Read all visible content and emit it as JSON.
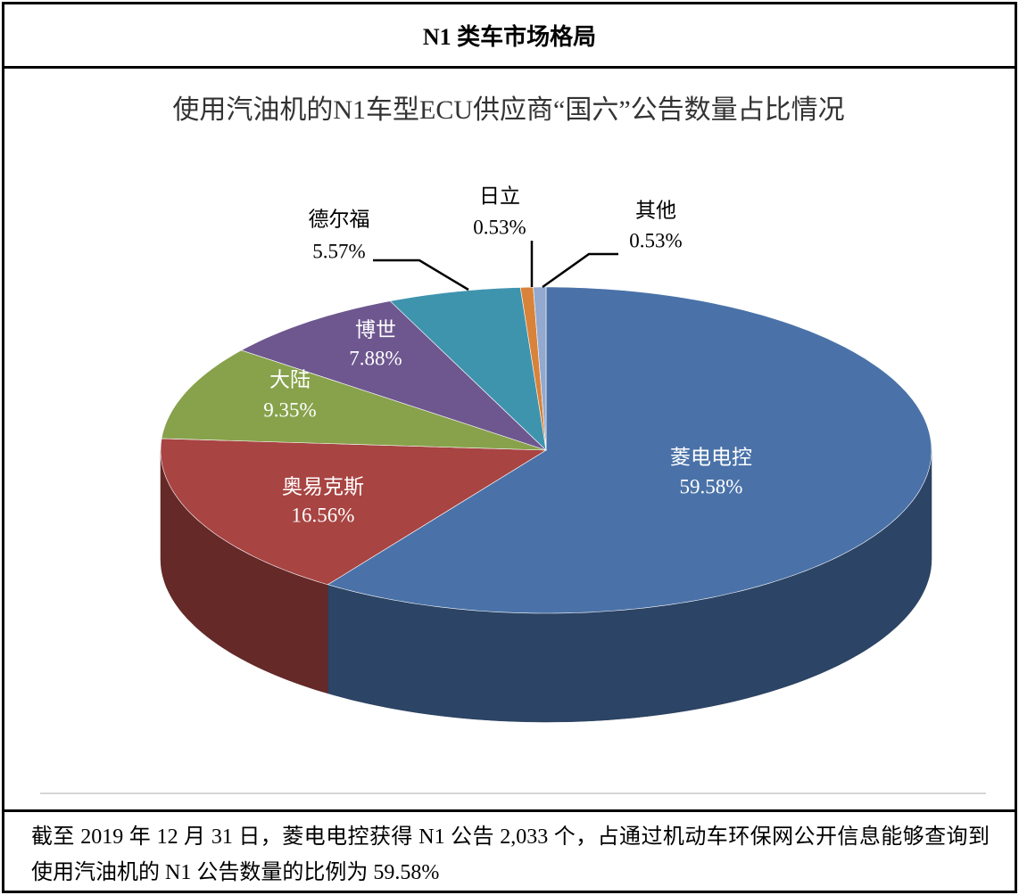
{
  "header": {
    "title": "N1 类车市场格局"
  },
  "chart_data": {
    "type": "pie",
    "title": "使用汽油机的N1车型ECU供应商“国六”公告数量占比情况",
    "categories": [
      "菱电电控",
      "奥易克斯",
      "大陆",
      "博世",
      "德尔福",
      "日立",
      "其他"
    ],
    "values": [
      59.58,
      16.56,
      9.35,
      7.88,
      5.57,
      0.53,
      0.53
    ],
    "value_labels": [
      "59.58%",
      "16.56%",
      "9.35%",
      "7.88%",
      "5.57%",
      "0.53%",
      "0.53%"
    ],
    "colors": [
      "#4a72a8",
      "#a84442",
      "#87a24b",
      "#6e578f",
      "#3f94ad",
      "#d9823a",
      "#94a9cf"
    ]
  },
  "footer": {
    "text": "截至 2019 年 12 月 31 日，菱电电控获得 N1 公告 2,033 个，占通过机动车环保网公开信息能够查询到使用汽油机的 N1 公告数量的比例为 59.58%"
  }
}
